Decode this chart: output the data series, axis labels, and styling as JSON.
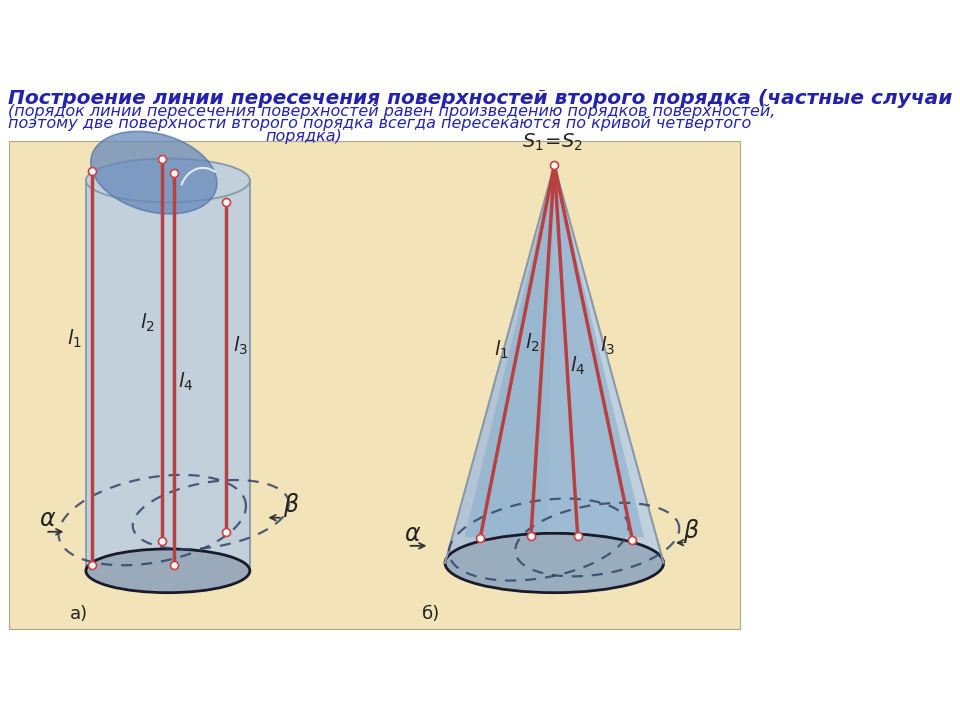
{
  "title": "Построение линии пересечения поверхностей второго порядка (частные случаи",
  "title_color": "#2222aa",
  "title_size": 14.5,
  "sub1": "(порядок линии пересечения поверхностей равен произведению порядков поверхностей,",
  "sub2": "поэтому две поверхности второго порядка всегда пересекаются по кривой четвертого",
  "sub3": "порядка)",
  "sub_color": "#2222aa",
  "sub_size": 11.5,
  "bg_white": "#ffffff",
  "bg_diagram": "#f2e4b8",
  "cyl_body": "#c2d0dc",
  "cyl_edge": "#8899aa",
  "cyl_base": "#9aaabb",
  "blue_fill": "#7a9abf",
  "cone_body": "#c0d0de",
  "cone_blue": "#8aaece",
  "line_red": "#b84040",
  "dot_outer": "#cc4444",
  "dot_inner": "#ffffff",
  "dashed_col": "#334466",
  "label_col": "#222222",
  "lbl_a": "а)",
  "lbl_b": "б)",
  "s_label": "$S_1\\!=\\!S_2$"
}
